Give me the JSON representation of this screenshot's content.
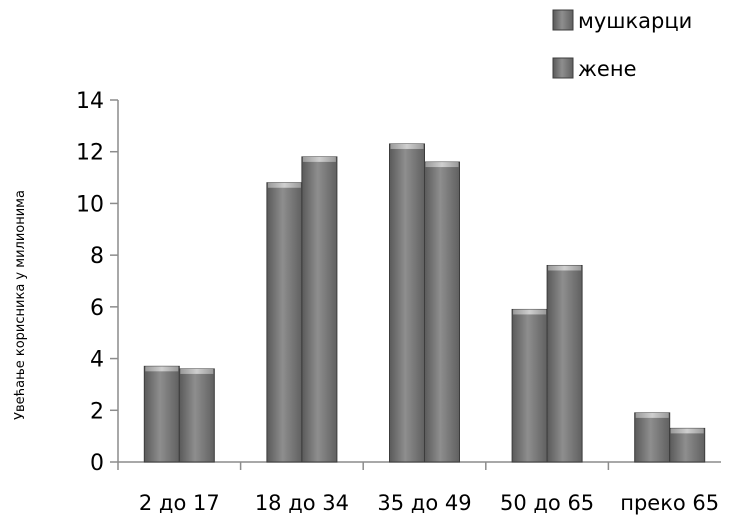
{
  "chart_data": {
    "type": "bar",
    "categories": [
      "2 до 17",
      "18 до 34",
      "35 до 49",
      "50 до 65",
      "преко 65"
    ],
    "series": [
      {
        "name": "мушкарци",
        "values": [
          3.7,
          10.8,
          12.3,
          5.9,
          1.9
        ]
      },
      {
        "name": "жене",
        "values": [
          3.6,
          11.8,
          11.6,
          7.6,
          1.3
        ]
      }
    ],
    "ylabel": "Увећање корисника у милионима",
    "ylim": [
      0,
      14
    ],
    "yticks": [
      0,
      2,
      4,
      6,
      8,
      10,
      12,
      14
    ],
    "legend_position": "top-right",
    "grid": false,
    "colors": {
      "bar_dark": "#505050",
      "bar_mid": "#8a8a8a",
      "bar_light": "#c4c4c4",
      "axis": "#8c8c8c"
    }
  }
}
